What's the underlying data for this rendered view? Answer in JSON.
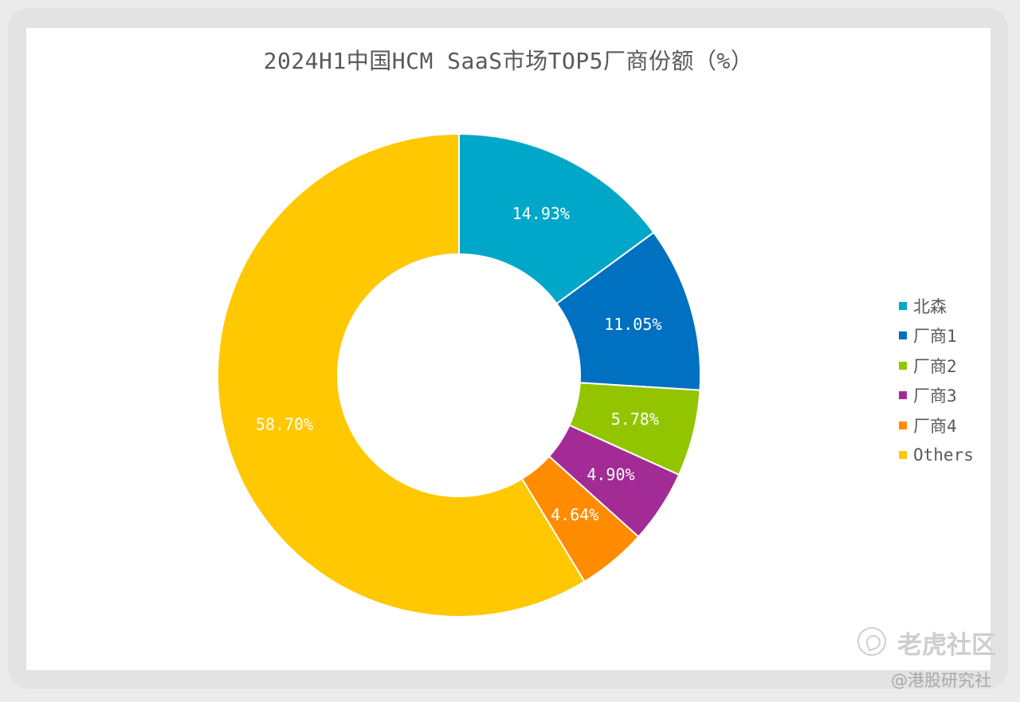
{
  "chart_data": {
    "type": "pie",
    "donut": true,
    "title": "2024H1中国HCM SaaS市场TOP5厂商份额（%）",
    "slices": [
      {
        "label": "北森",
        "value": 14.93,
        "value_label": "14.93%",
        "color": "#00A7C8"
      },
      {
        "label": "厂商1",
        "value": 11.05,
        "value_label": "11.05%",
        "color": "#0070C0"
      },
      {
        "label": "厂商2",
        "value": 5.78,
        "value_label": "5.78%",
        "color": "#92C500"
      },
      {
        "label": "厂商3",
        "value": 4.9,
        "value_label": "4.90%",
        "color": "#A32B96"
      },
      {
        "label": "厂商4",
        "value": 4.64,
        "value_label": "4.64%",
        "color": "#FF8C00"
      },
      {
        "label": "Others",
        "value": 58.7,
        "value_label": "58.70%",
        "color": "#FFC800"
      }
    ],
    "legend_position": "right"
  },
  "watermark": {
    "brand": "老虎社区",
    "handle": "@港股研究社",
    "icon": "tiger-community-logo-icon"
  }
}
